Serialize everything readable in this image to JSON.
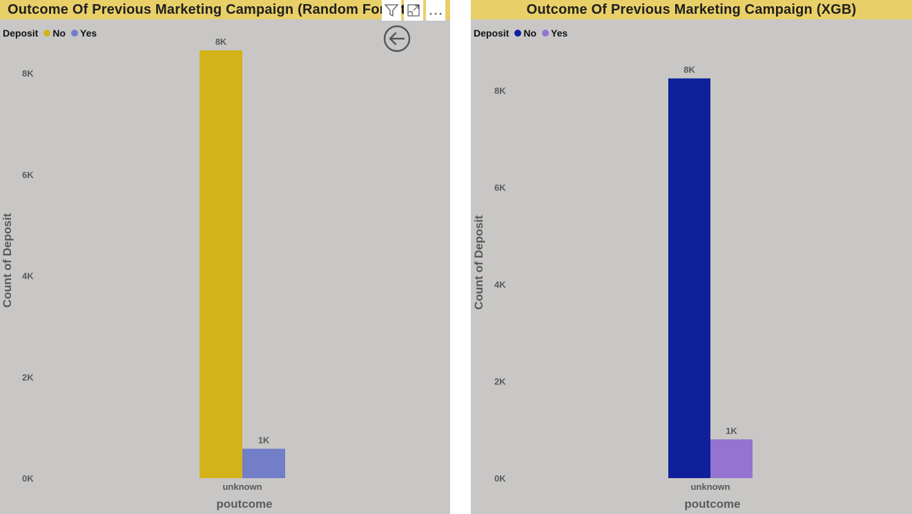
{
  "panels": [
    {
      "title": "Outcome Of Previous Marketing Campaign (Random Forest)",
      "legend": {
        "title": "Deposit",
        "items": [
          {
            "label": "No",
            "color": "#d4b21a"
          },
          {
            "label": "Yes",
            "color": "#737ec9"
          }
        ]
      }
    },
    {
      "title": "Outcome Of Previous Marketing Campaign (XGB)",
      "legend": {
        "title": "Deposit",
        "items": [
          {
            "label": "No",
            "color": "#10209b"
          },
          {
            "label": "Yes",
            "color": "#9473d1"
          }
        ]
      }
    }
  ],
  "header_icons": [
    "filter-icon",
    "focus-mode-icon",
    "more-options-icon",
    "back-arrow-icon"
  ],
  "chart_data": [
    {
      "type": "bar",
      "title": "Outcome Of Previous Marketing Campaign (Random Forest)",
      "xlabel": "poutcome",
      "ylabel": "Count of Deposit",
      "categories": [
        "unknown"
      ],
      "series": [
        {
          "name": "No",
          "values": [
            8450
          ],
          "data_label": "8K",
          "color": "#d4b21a"
        },
        {
          "name": "Yes",
          "values": [
            580
          ],
          "data_label": "1K",
          "color": "#737ec9"
        }
      ],
      "ylim": [
        0,
        8600
      ],
      "yticks": [
        {
          "value": 0,
          "label": "0K"
        },
        {
          "value": 2000,
          "label": "2K"
        },
        {
          "value": 4000,
          "label": "4K"
        },
        {
          "value": 6000,
          "label": "6K"
        },
        {
          "value": 8000,
          "label": "8K"
        }
      ],
      "grid": false,
      "legend_position": "top-left"
    },
    {
      "type": "bar",
      "title": "Outcome Of Previous Marketing Campaign (XGB)",
      "xlabel": "poutcome",
      "ylabel": "Count of Deposit",
      "categories": [
        "unknown"
      ],
      "series": [
        {
          "name": "No",
          "values": [
            8250
          ],
          "data_label": "8K",
          "color": "#10209b"
        },
        {
          "name": "Yes",
          "values": [
            800
          ],
          "data_label": "1K",
          "color": "#9473d1"
        }
      ],
      "ylim": [
        0,
        8900
      ],
      "yticks": [
        {
          "value": 0,
          "label": "0K"
        },
        {
          "value": 2000,
          "label": "2K"
        },
        {
          "value": 4000,
          "label": "4K"
        },
        {
          "value": 6000,
          "label": "6K"
        },
        {
          "value": 8000,
          "label": "8K"
        }
      ],
      "grid": false,
      "legend_position": "top-left"
    }
  ]
}
